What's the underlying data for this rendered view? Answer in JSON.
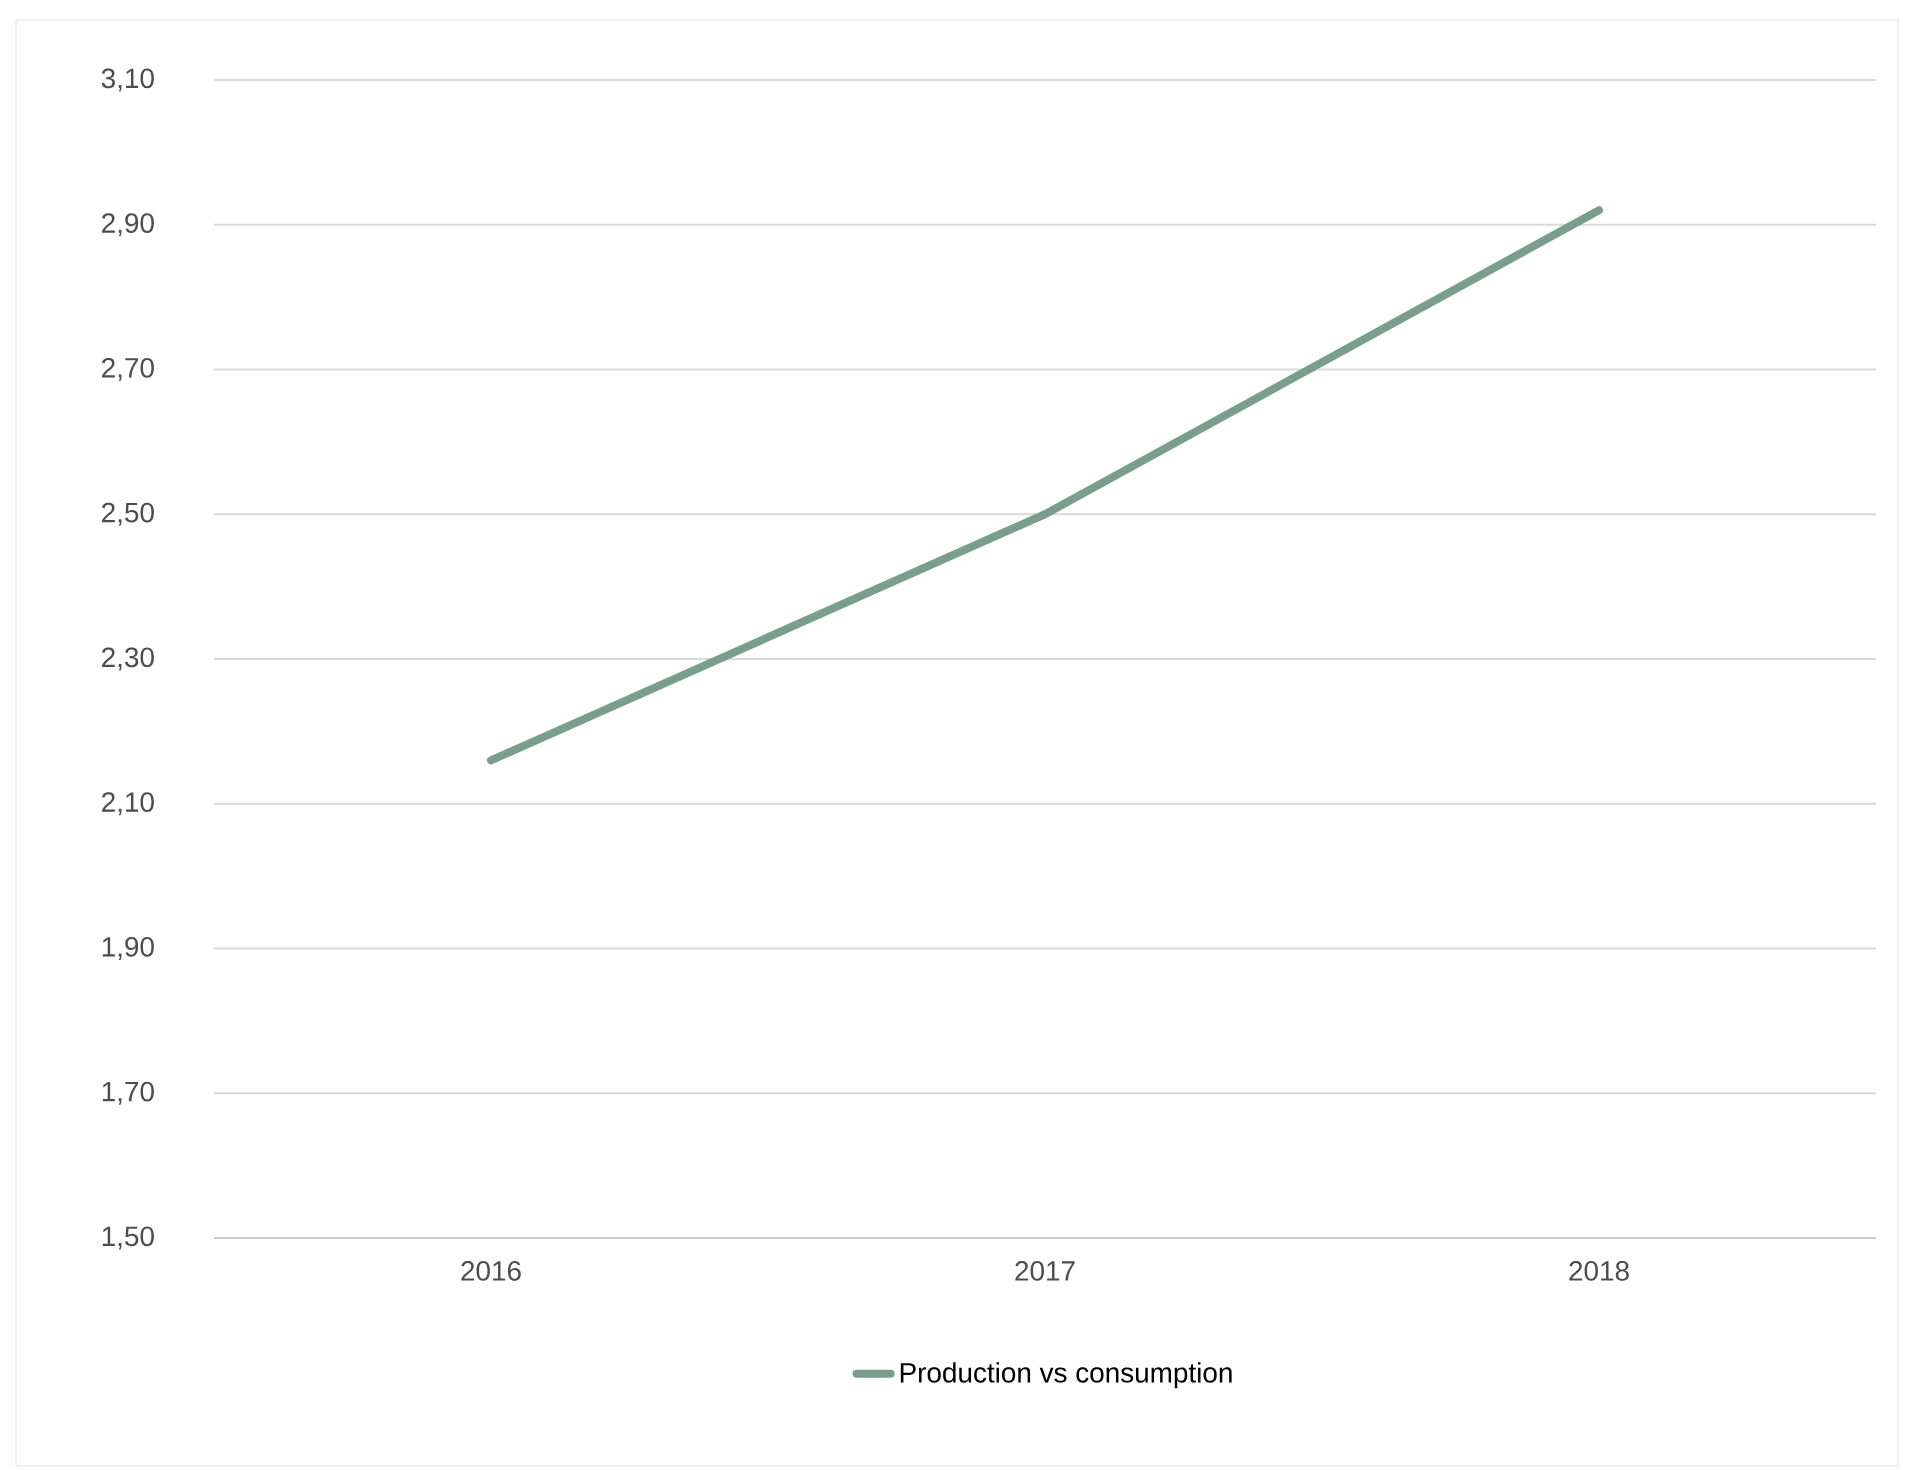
{
  "chart_data": {
    "type": "line",
    "categories": [
      "2016",
      "2017",
      "2018"
    ],
    "series": [
      {
        "name": "Production vs consumption",
        "color": "#7a9e8c",
        "values": [
          2.16,
          2.5,
          2.92
        ]
      }
    ],
    "ylim": [
      1.5,
      3.1
    ],
    "yticks": [
      {
        "value": 1.5,
        "label": "1,50"
      },
      {
        "value": 1.7,
        "label": "1,70"
      },
      {
        "value": 1.9,
        "label": "1,90"
      },
      {
        "value": 2.1,
        "label": "2,10"
      },
      {
        "value": 2.3,
        "label": "2,30"
      },
      {
        "value": 2.5,
        "label": "2,50"
      },
      {
        "value": 2.7,
        "label": "2,70"
      },
      {
        "value": 2.9,
        "label": "2,90"
      },
      {
        "value": 3.1,
        "label": "3,10"
      }
    ],
    "grid": "y",
    "legend": "bottom",
    "marker": "none",
    "line_style": "solid"
  }
}
